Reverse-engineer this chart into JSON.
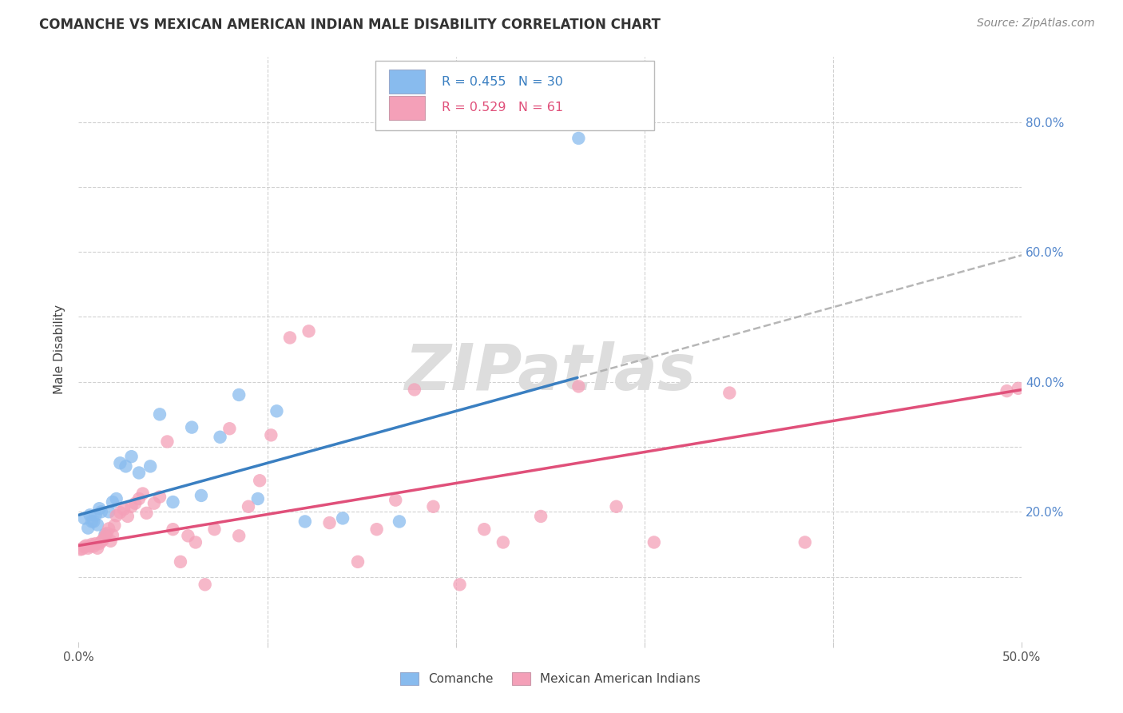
{
  "title": "COMANCHE VS MEXICAN AMERICAN INDIAN MALE DISABILITY CORRELATION CHART",
  "source": "Source: ZipAtlas.com",
  "ylabel": "Male Disability",
  "xlim": [
    0.0,
    0.5
  ],
  "ylim": [
    0.0,
    0.9
  ],
  "blue_color": "#88bbee",
  "pink_color": "#f4a0b8",
  "blue_line_color": "#3a7fc1",
  "pink_line_color": "#e0507a",
  "legend_blue_R": "0.455",
  "legend_blue_N": "30",
  "legend_pink_R": "0.529",
  "legend_pink_N": "61",
  "watermark_text": "ZIPatlas",
  "blue_line_intercept": 0.195,
  "blue_line_slope": 0.8,
  "pink_line_intercept": 0.148,
  "pink_line_slope": 0.48,
  "blue_line_solid_end": 0.265,
  "blue_scatter_x": [
    0.003,
    0.005,
    0.006,
    0.007,
    0.008,
    0.009,
    0.01,
    0.011,
    0.012,
    0.014,
    0.016,
    0.018,
    0.02,
    0.022,
    0.025,
    0.028,
    0.032,
    0.038,
    0.043,
    0.05,
    0.06,
    0.065,
    0.075,
    0.085,
    0.095,
    0.105,
    0.12,
    0.14,
    0.17,
    0.265
  ],
  "blue_scatter_y": [
    0.19,
    0.175,
    0.195,
    0.185,
    0.185,
    0.195,
    0.18,
    0.205,
    0.2,
    0.165,
    0.2,
    0.215,
    0.22,
    0.275,
    0.27,
    0.285,
    0.26,
    0.27,
    0.35,
    0.215,
    0.33,
    0.225,
    0.315,
    0.38,
    0.22,
    0.355,
    0.185,
    0.19,
    0.185,
    0.775
  ],
  "pink_scatter_x": [
    0.001,
    0.002,
    0.003,
    0.004,
    0.005,
    0.006,
    0.007,
    0.008,
    0.009,
    0.01,
    0.011,
    0.012,
    0.013,
    0.014,
    0.015,
    0.016,
    0.017,
    0.018,
    0.019,
    0.02,
    0.022,
    0.024,
    0.026,
    0.028,
    0.03,
    0.032,
    0.034,
    0.036,
    0.04,
    0.043,
    0.047,
    0.05,
    0.054,
    0.058,
    0.062,
    0.067,
    0.072,
    0.08,
    0.085,
    0.09,
    0.096,
    0.102,
    0.112,
    0.122,
    0.133,
    0.148,
    0.158,
    0.168,
    0.178,
    0.188,
    0.202,
    0.215,
    0.225,
    0.245,
    0.265,
    0.285,
    0.305,
    0.345,
    0.385,
    0.492,
    0.498
  ],
  "pink_scatter_y": [
    0.142,
    0.143,
    0.146,
    0.148,
    0.144,
    0.147,
    0.15,
    0.147,
    0.151,
    0.144,
    0.151,
    0.154,
    0.157,
    0.162,
    0.167,
    0.174,
    0.155,
    0.164,
    0.179,
    0.194,
    0.199,
    0.204,
    0.193,
    0.208,
    0.213,
    0.22,
    0.228,
    0.198,
    0.213,
    0.223,
    0.308,
    0.173,
    0.123,
    0.163,
    0.153,
    0.088,
    0.173,
    0.328,
    0.163,
    0.208,
    0.248,
    0.318,
    0.468,
    0.478,
    0.183,
    0.123,
    0.173,
    0.218,
    0.388,
    0.208,
    0.088,
    0.173,
    0.153,
    0.193,
    0.393,
    0.208,
    0.153,
    0.383,
    0.153,
    0.386,
    0.39
  ]
}
